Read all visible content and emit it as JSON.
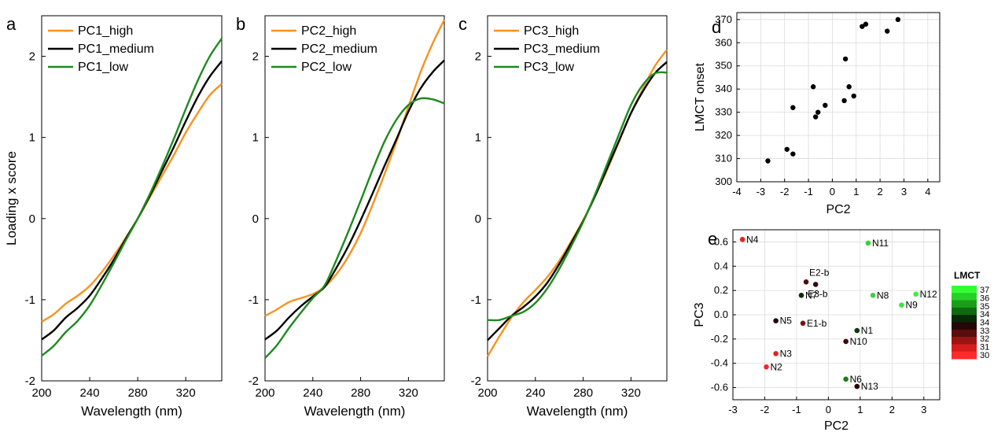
{
  "panel_labels": [
    "a",
    "b",
    "c",
    "d",
    "e"
  ],
  "colors": {
    "high": "#f7931e",
    "medium": "#000000",
    "low": "#1e8a1e"
  },
  "chart_data": [
    {
      "id": "a",
      "type": "line",
      "xlabel": "Wavelength (nm)",
      "ylabel": "Loading x score",
      "xlim": [
        200,
        350
      ],
      "ylim": [
        -2,
        2.5
      ],
      "xticks": [
        "200",
        "240",
        "280",
        "320"
      ],
      "yticks": [
        "-2",
        "-1",
        "0",
        "1",
        "2"
      ],
      "legend_position": "top-left",
      "series": [
        {
          "name": "PC1_high",
          "color": "#f7931e",
          "x": [
            200,
            210,
            220,
            230,
            240,
            250,
            260,
            270,
            280,
            290,
            300,
            310,
            320,
            330,
            340,
            350
          ],
          "y": [
            -1.27,
            -1.18,
            -1.05,
            -0.95,
            -0.83,
            -0.66,
            -0.46,
            -0.24,
            0.0,
            0.26,
            0.52,
            0.78,
            1.06,
            1.3,
            1.52,
            1.66
          ]
        },
        {
          "name": "PC1_medium",
          "color": "#000000",
          "x": [
            200,
            210,
            220,
            230,
            240,
            250,
            260,
            270,
            280,
            290,
            300,
            310,
            320,
            330,
            340,
            350
          ],
          "y": [
            -1.49,
            -1.38,
            -1.22,
            -1.1,
            -0.95,
            -0.74,
            -0.51,
            -0.25,
            0.0,
            0.28,
            0.58,
            0.88,
            1.2,
            1.5,
            1.75,
            1.94
          ]
        },
        {
          "name": "PC1_low",
          "color": "#1e8a1e",
          "x": [
            200,
            210,
            220,
            230,
            240,
            250,
            260,
            270,
            280,
            290,
            300,
            310,
            320,
            330,
            340,
            350
          ],
          "y": [
            -1.69,
            -1.57,
            -1.4,
            -1.26,
            -1.07,
            -0.82,
            -0.55,
            -0.27,
            0.0,
            0.3,
            0.63,
            0.98,
            1.35,
            1.7,
            2.0,
            2.22
          ]
        }
      ]
    },
    {
      "id": "b",
      "type": "line",
      "xlabel": "Wavelength (nm)",
      "ylabel": "",
      "xlim": [
        200,
        350
      ],
      "ylim": [
        -2,
        2.5
      ],
      "xticks": [
        "200",
        "240",
        "280",
        "320"
      ],
      "yticks": [
        "-2",
        "-1",
        "0",
        "1",
        "2"
      ],
      "legend_position": "top-left",
      "series": [
        {
          "name": "PC2_high",
          "color": "#f7931e",
          "x": [
            200,
            210,
            220,
            230,
            240,
            250,
            260,
            270,
            280,
            290,
            300,
            310,
            320,
            330,
            340,
            350
          ],
          "y": [
            -1.2,
            -1.12,
            -1.03,
            -0.98,
            -0.93,
            -0.84,
            -0.68,
            -0.46,
            -0.18,
            0.17,
            0.55,
            0.95,
            1.38,
            1.8,
            2.15,
            2.45
          ]
        },
        {
          "name": "PC2_medium",
          "color": "#000000",
          "x": [
            200,
            210,
            220,
            230,
            240,
            250,
            260,
            270,
            280,
            290,
            300,
            310,
            320,
            330,
            340,
            350
          ],
          "y": [
            -1.49,
            -1.38,
            -1.22,
            -1.08,
            -0.96,
            -0.84,
            -0.6,
            -0.33,
            -0.02,
            0.31,
            0.65,
            0.98,
            1.32,
            1.6,
            1.8,
            1.95
          ]
        },
        {
          "name": "PC2_low",
          "color": "#1e8a1e",
          "x": [
            200,
            210,
            220,
            230,
            240,
            250,
            260,
            270,
            280,
            290,
            300,
            310,
            320,
            330,
            340,
            350
          ],
          "y": [
            -1.72,
            -1.56,
            -1.35,
            -1.16,
            -0.98,
            -0.82,
            -0.5,
            -0.15,
            0.22,
            0.6,
            0.95,
            1.22,
            1.4,
            1.48,
            1.47,
            1.42
          ]
        }
      ]
    },
    {
      "id": "c",
      "type": "line",
      "xlabel": "Wavelength (nm)",
      "ylabel": "",
      "xlim": [
        200,
        350
      ],
      "ylim": [
        -2,
        2.5
      ],
      "xticks": [
        "200",
        "240",
        "280",
        "320"
      ],
      "yticks": [
        "-2",
        "-1",
        "0",
        "1",
        "2"
      ],
      "legend_position": "top-left",
      "series": [
        {
          "name": "PC3_high",
          "color": "#f7931e",
          "x": [
            200,
            210,
            220,
            230,
            240,
            250,
            260,
            270,
            280,
            290,
            300,
            310,
            320,
            330,
            340,
            350
          ],
          "y": [
            -1.7,
            -1.45,
            -1.22,
            -1.03,
            -0.88,
            -0.72,
            -0.52,
            -0.28,
            -0.02,
            0.28,
            0.6,
            0.95,
            1.3,
            1.6,
            1.88,
            2.08
          ]
        },
        {
          "name": "PC3_medium",
          "color": "#000000",
          "x": [
            200,
            210,
            220,
            230,
            240,
            250,
            260,
            270,
            280,
            290,
            300,
            310,
            320,
            330,
            340,
            350
          ],
          "y": [
            -1.5,
            -1.35,
            -1.2,
            -1.09,
            -0.96,
            -0.79,
            -0.56,
            -0.3,
            -0.03,
            0.28,
            0.62,
            0.96,
            1.3,
            1.57,
            1.79,
            1.93
          ]
        },
        {
          "name": "PC3_low",
          "color": "#1e8a1e",
          "x": [
            200,
            210,
            220,
            230,
            240,
            250,
            260,
            270,
            280,
            290,
            300,
            310,
            320,
            330,
            340,
            350
          ],
          "y": [
            -1.25,
            -1.25,
            -1.2,
            -1.15,
            -1.04,
            -0.86,
            -0.62,
            -0.34,
            -0.04,
            0.3,
            0.67,
            1.04,
            1.4,
            1.65,
            1.79,
            1.8
          ]
        }
      ]
    },
    {
      "id": "d",
      "type": "scatter",
      "xlabel": "PC2",
      "ylabel": "LMCT onset",
      "xlim": [
        -4,
        4.5
      ],
      "ylim": [
        300,
        373
      ],
      "xticks": [
        "-4",
        "-3",
        "-2",
        "-1",
        "0",
        "1",
        "2",
        "3",
        "4"
      ],
      "yticks": [
        "300",
        "310",
        "320",
        "330",
        "340",
        "350",
        "360",
        "370"
      ],
      "grid": true,
      "x": [
        -2.7,
        -1.9,
        -1.65,
        -1.65,
        -0.8,
        -0.7,
        -0.6,
        -0.3,
        0.5,
        0.55,
        0.7,
        0.9,
        1.25,
        1.4,
        2.3,
        2.75
      ],
      "y": [
        309,
        314,
        312,
        332,
        341,
        328,
        330,
        333,
        335,
        353,
        341,
        337,
        367,
        368,
        365,
        370
      ]
    },
    {
      "id": "e",
      "type": "scatter",
      "xlabel": "PC2",
      "ylabel": "PC3",
      "xlim": [
        -3,
        3.5
      ],
      "ylim": [
        -0.7,
        0.7
      ],
      "xticks": [
        "-3",
        "-2",
        "-1",
        "0",
        "1",
        "2",
        "3"
      ],
      "yticks": [
        "-0.6",
        "-0.4",
        "-0.2",
        "0.0",
        "0.2",
        "0.4",
        "0.6"
      ],
      "grid": true,
      "points": [
        {
          "label": "N4",
          "x": -2.7,
          "y": 0.62,
          "color": "#e8231e"
        },
        {
          "label": "N11",
          "x": 1.25,
          "y": 0.59,
          "color": "#3ad23a"
        },
        {
          "label": "E2-b",
          "x": -0.7,
          "y": 0.27,
          "color": "#4a1010"
        },
        {
          "label": "E3-b",
          "x": -0.4,
          "y": 0.25,
          "color": "#3a0a0a"
        },
        {
          "label": "N7",
          "x": -0.85,
          "y": 0.16,
          "color": "#0b2a0b"
        },
        {
          "label": "N8",
          "x": 1.4,
          "y": 0.16,
          "color": "#39d439"
        },
        {
          "label": "N12",
          "x": 2.75,
          "y": 0.17,
          "color": "#3ff03f"
        },
        {
          "label": "N9",
          "x": 2.3,
          "y": 0.08,
          "color": "#3ae83a"
        },
        {
          "label": "N5",
          "x": -1.65,
          "y": -0.05,
          "color": "#2a0606"
        },
        {
          "label": "E1-b",
          "x": -0.8,
          "y": -0.07,
          "color": "#7a1212"
        },
        {
          "label": "N1",
          "x": 0.9,
          "y": -0.13,
          "color": "#0e3a0e"
        },
        {
          "label": "N10",
          "x": 0.55,
          "y": -0.22,
          "color": "#3a0a0a"
        },
        {
          "label": "N3",
          "x": -1.65,
          "y": -0.32,
          "color": "#e22222"
        },
        {
          "label": "N2",
          "x": -1.95,
          "y": -0.43,
          "color": "#ef2a2a"
        },
        {
          "label": "N6",
          "x": 0.55,
          "y": -0.53,
          "color": "#1e7a1e"
        },
        {
          "label": "N13",
          "x": 0.9,
          "y": -0.59,
          "color": "#2a0505"
        }
      ],
      "colorbar": {
        "title": "LMCT",
        "labels": [
          "37",
          "36",
          "35",
          "34",
          "34",
          "33",
          "32",
          "31",
          "30"
        ],
        "colors": [
          "#33ff33",
          "#26d026",
          "#1a9e1a",
          "#0f6a0f",
          "#082a08",
          "#260606",
          "#5a0d0d",
          "#9a1414",
          "#d61c1c",
          "#ff2a2a"
        ]
      }
    }
  ]
}
